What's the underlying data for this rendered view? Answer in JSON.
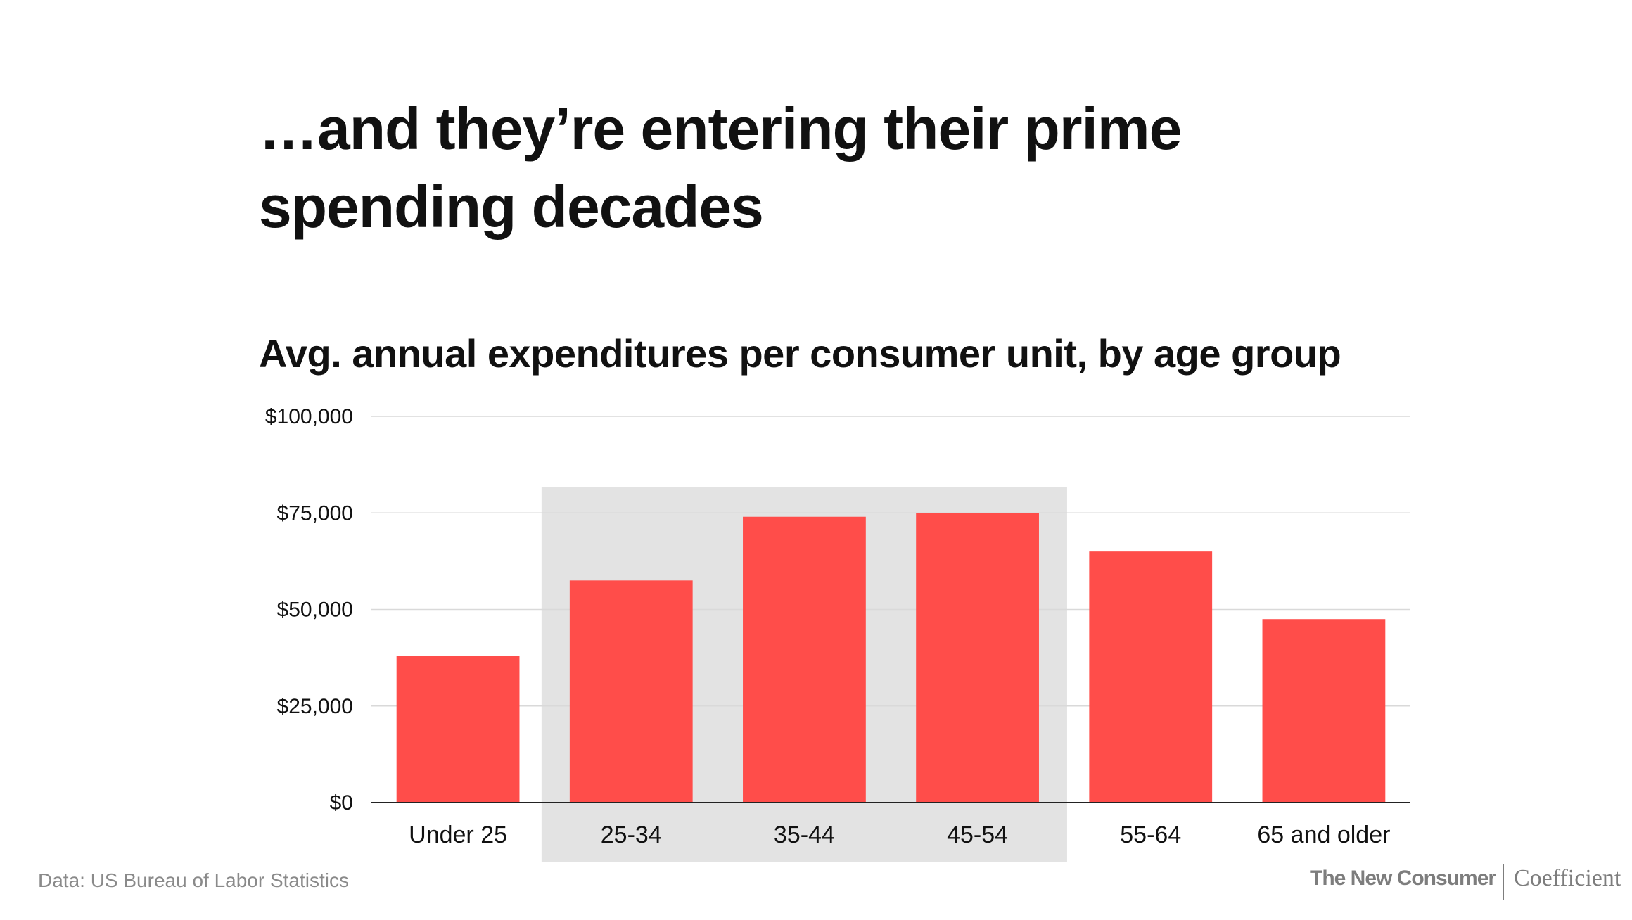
{
  "headline": {
    "line1": "…and they’re entering their prime",
    "line2": "spending decades"
  },
  "source": "Data: US Bureau of Labor Statistics",
  "brand": {
    "left": "The New Consumer",
    "right": "Coefficient"
  },
  "colors": {
    "bar": "#ff4d4a",
    "highlight": "#e3e3e3",
    "grid": "#d9d9d9",
    "baseline": "#222222"
  },
  "chart_data": {
    "type": "bar",
    "title": "Avg. annual expenditures per consumer unit, by age group",
    "xlabel": "",
    "ylabel": "",
    "categories": [
      "Under 25",
      "25-34",
      "35-44",
      "45-54",
      "55-64",
      "65 and older"
    ],
    "values": [
      38000,
      57500,
      74000,
      75000,
      65000,
      47500
    ],
    "ylim": [
      0,
      100000
    ],
    "yticks": [
      0,
      25000,
      50000,
      75000,
      100000
    ],
    "ytick_labels": [
      "$0",
      "$25,000",
      "$50,000",
      "$75,000",
      "$100,000"
    ],
    "highlighted_categories": [
      "25-34",
      "35-44",
      "45-54"
    ],
    "grid": true,
    "legend": "none"
  }
}
